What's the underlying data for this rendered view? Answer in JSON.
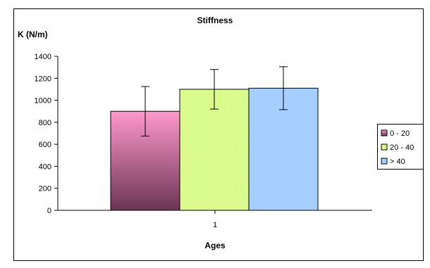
{
  "chart_data": {
    "type": "bar",
    "title": "Stiffness",
    "ylabel": "K (N/m)",
    "xlabel": "Ages",
    "categories": [
      "1"
    ],
    "ylim": [
      0,
      1400
    ],
    "yticks": [
      "0",
      "200",
      "400",
      "600",
      "800",
      "1000",
      "1200",
      "1400"
    ],
    "grid": false,
    "legend_position": "right",
    "series": [
      {
        "name": "0 - 20",
        "values": [
          900
        ],
        "error": [
          225
        ],
        "color": "#a03a6f",
        "pattern": "pink-to-maroon gradient"
      },
      {
        "name": "20 - 40",
        "values": [
          1100
        ],
        "error": [
          180
        ],
        "color": "#d6f07a",
        "pattern": "fine checker"
      },
      {
        "name": "> 40",
        "values": [
          1110
        ],
        "error": [
          195
        ],
        "color": "#a6cfff",
        "pattern": "solid"
      }
    ]
  }
}
